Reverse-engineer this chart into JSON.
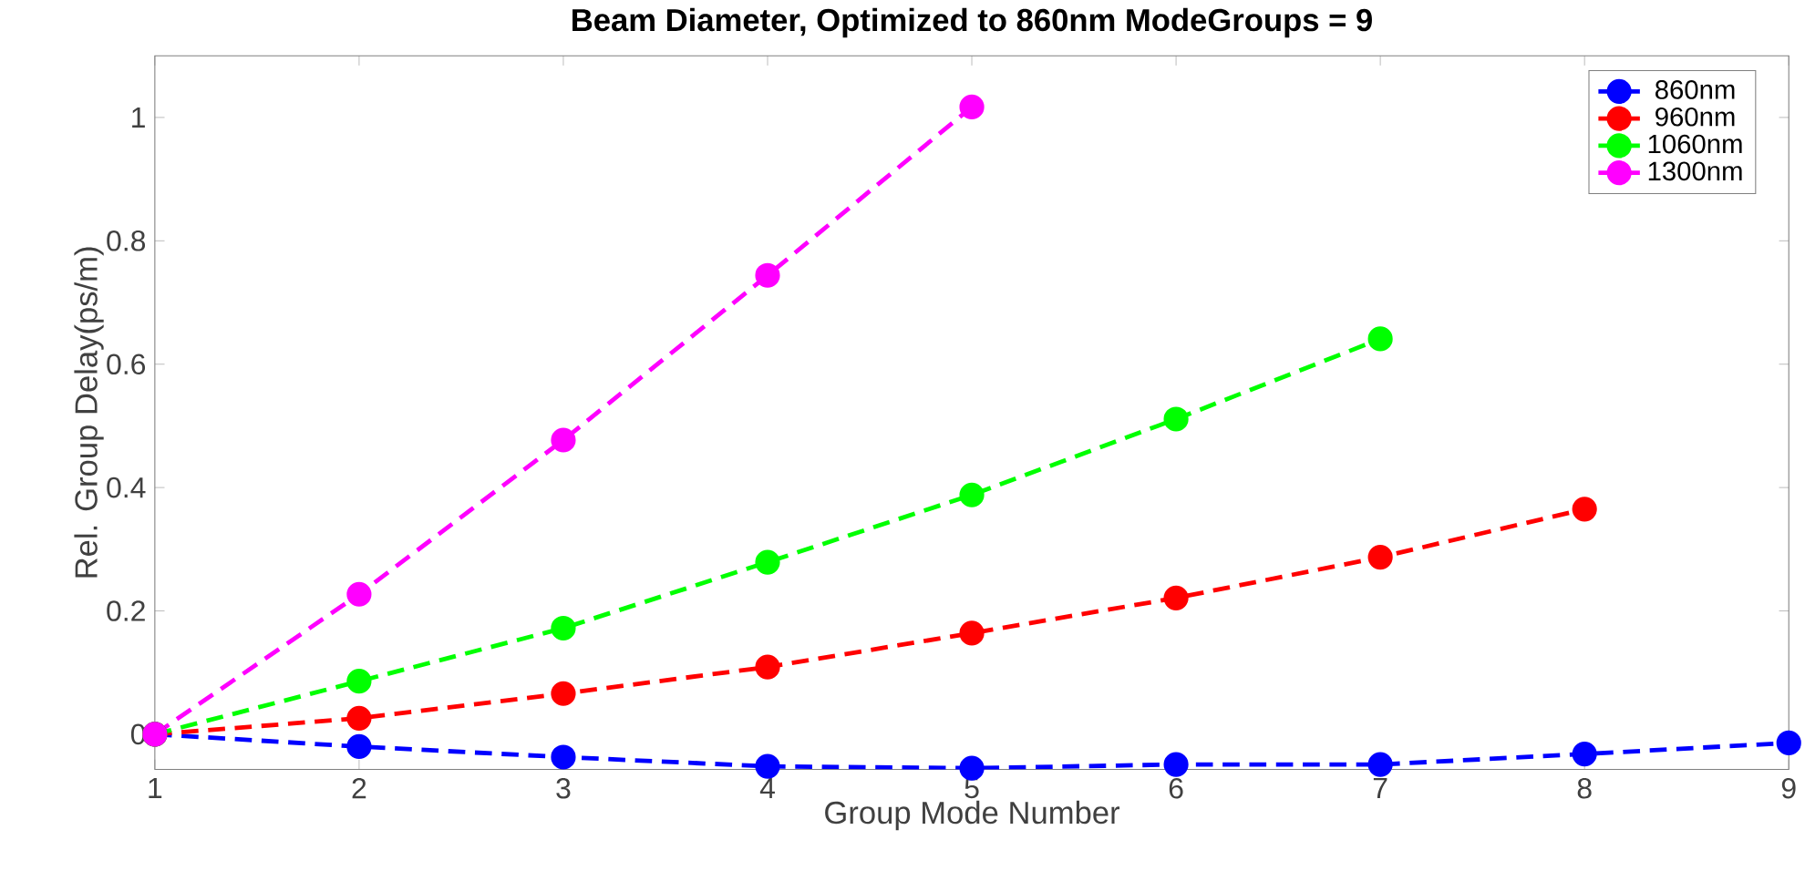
{
  "chart_data": {
    "type": "line",
    "title": "Beam Diameter, Optimized to 860nm ModeGroups = 9",
    "xlabel": "Group Mode Number",
    "ylabel": "Rel. Group Delay(ps/m)",
    "xlim": [
      1,
      9
    ],
    "xticks": [
      1,
      2,
      3,
      4,
      5,
      6,
      7,
      8,
      9
    ],
    "ylim": [
      -0.057,
      1.1
    ],
    "yticks": [
      0,
      0.2,
      0.4,
      0.6,
      0.8,
      1
    ],
    "marker": "circle",
    "line_style": "dashed",
    "legend": "top right",
    "grid": false,
    "x": [
      1,
      2,
      3,
      4,
      5,
      6,
      7,
      8,
      9
    ],
    "series": [
      {
        "name": "860nm",
        "color": "#0000ff",
        "values": [
          0,
          -0.02,
          -0.037,
          -0.052,
          -0.055,
          -0.049,
          -0.049,
          -0.032,
          -0.014
        ]
      },
      {
        "name": "960nm",
        "color": "#ff0000",
        "values": [
          0,
          0.026,
          0.066,
          0.109,
          0.164,
          0.221,
          0.287,
          0.365,
          null
        ]
      },
      {
        "name": "1060nm",
        "color": "#00ff00",
        "values": [
          0,
          0.086,
          0.172,
          0.279,
          0.388,
          0.511,
          0.641,
          null,
          null
        ]
      },
      {
        "name": "1300nm",
        "color": "#ff00ff",
        "values": [
          0,
          0.227,
          0.477,
          0.744,
          1.017,
          null,
          null,
          null,
          null
        ]
      }
    ]
  }
}
